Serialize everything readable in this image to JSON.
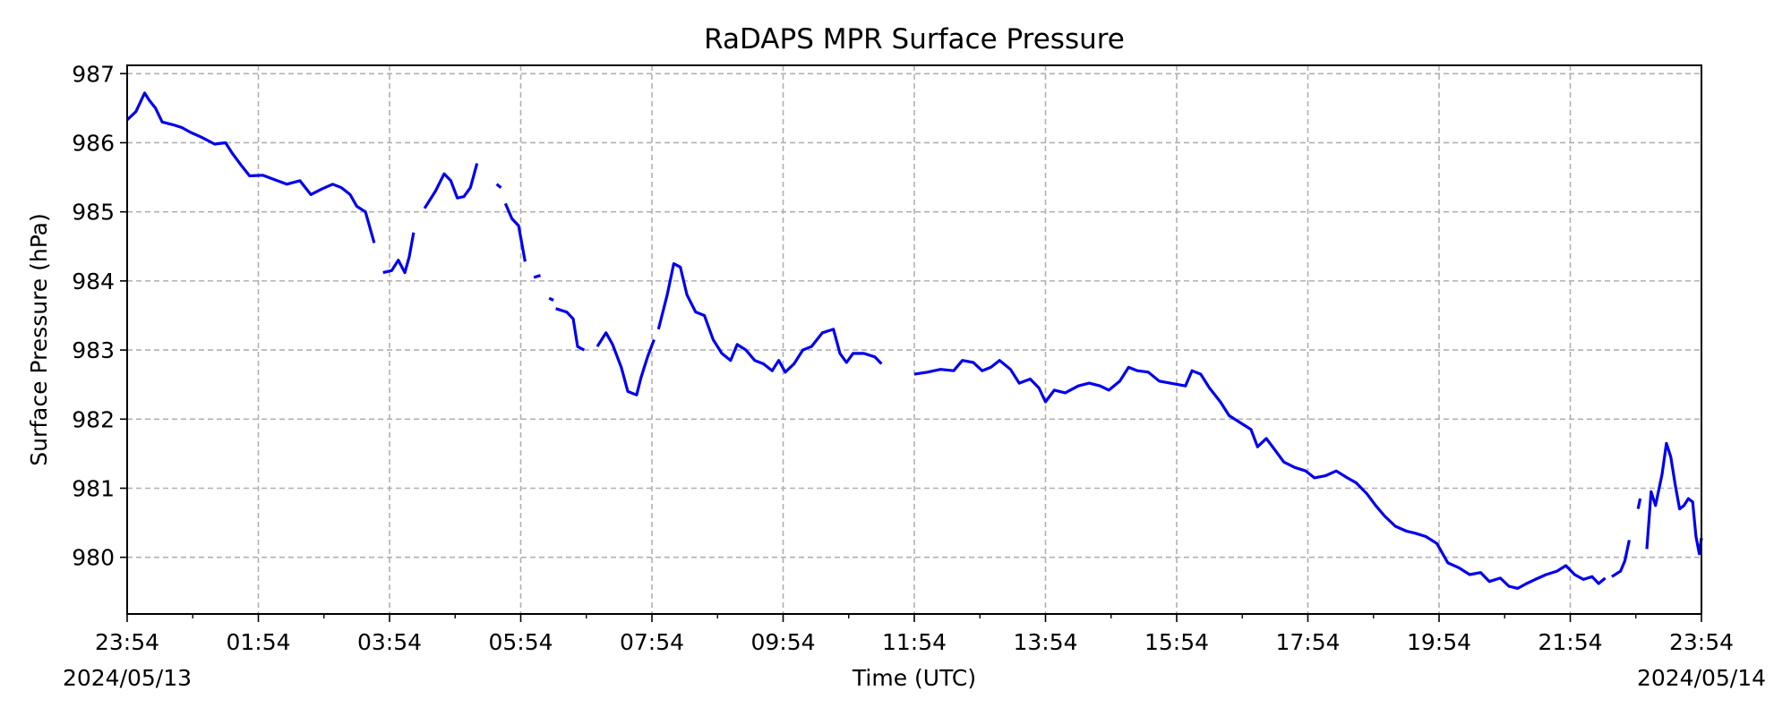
{
  "chart_data": {
    "type": "line",
    "title": "RaDAPS MPR Surface Pressure",
    "xlabel": "Time (UTC)",
    "ylabel": "Surface Pressure (hPa)",
    "x_start_date": "2024/05/13",
    "x_end_date": "2024/05/14",
    "x_tick_labels": [
      "23:54",
      "01:54",
      "03:54",
      "05:54",
      "07:54",
      "09:54",
      "11:54",
      "13:54",
      "15:54",
      "17:54",
      "19:54",
      "21:54",
      "23:54"
    ],
    "xlim": [
      "2024/05/13 23:54",
      "2024/05/14 23:54"
    ],
    "y_tick_labels": [
      "980",
      "981",
      "982",
      "983",
      "984",
      "985",
      "986",
      "987"
    ],
    "y_ticks": [
      980,
      981,
      982,
      983,
      984,
      985,
      986,
      987
    ],
    "ylim": [
      979.18,
      987.12
    ],
    "grid": true,
    "line_color": "#0000ee",
    "series": [
      {
        "segments": [
          [
            [
              "23:54",
              986.33
            ],
            [
              "00:02",
              986.45
            ],
            [
              "00:10",
              986.72
            ],
            [
              "00:14",
              986.62
            ],
            [
              "00:20",
              986.5
            ],
            [
              "00:26",
              986.3
            ],
            [
              "00:36",
              986.26
            ],
            [
              "00:44",
              986.22
            ],
            [
              "00:52",
              986.15
            ],
            [
              "01:02",
              986.08
            ],
            [
              "01:14",
              985.98
            ],
            [
              "01:24",
              986.0
            ],
            [
              "01:30",
              985.85
            ],
            [
              "01:38",
              985.68
            ],
            [
              "01:46",
              985.52
            ],
            [
              "01:58",
              985.53
            ],
            [
              "02:08",
              985.47
            ],
            [
              "02:20",
              985.4
            ],
            [
              "02:32",
              985.45
            ],
            [
              "02:42",
              985.25
            ],
            [
              "02:52",
              985.33
            ],
            [
              "03:02",
              985.4
            ],
            [
              "03:10",
              985.35
            ],
            [
              "03:18",
              985.25
            ],
            [
              "03:24",
              985.08
            ],
            [
              "03:32",
              985.0
            ],
            [
              "03:40",
              984.55
            ]
          ],
          [
            [
              "03:48",
              984.12
            ],
            [
              "03:56",
              984.15
            ],
            [
              "04:02",
              984.3
            ],
            [
              "04:08",
              984.12
            ],
            [
              "04:12",
              984.35
            ],
            [
              "04:16",
              984.7
            ]
          ],
          [
            [
              "04:26",
              985.05
            ],
            [
              "04:36",
              985.3
            ],
            [
              "04:44",
              985.55
            ],
            [
              "04:50",
              985.45
            ],
            [
              "04:56",
              985.2
            ],
            [
              "05:02",
              985.22
            ],
            [
              "05:08",
              985.35
            ],
            [
              "05:14",
              985.7
            ]
          ],
          [
            [
              "05:32",
              985.4
            ],
            [
              "05:36",
              985.35
            ]
          ],
          [
            [
              "05:40",
              985.12
            ],
            [
              "05:46",
              984.9
            ],
            [
              "05:52",
              984.8
            ],
            [
              "05:58",
              984.28
            ]
          ],
          [
            [
              "06:06",
              984.05
            ],
            [
              "06:12",
              984.08
            ]
          ],
          [
            [
              "06:20",
              983.75
            ],
            [
              "06:24",
              983.72
            ]
          ],
          [
            [
              "06:26",
              983.6
            ],
            [
              "06:36",
              983.55
            ],
            [
              "06:42",
              983.45
            ],
            [
              "06:46",
              983.05
            ],
            [
              "06:52",
              983.0
            ]
          ],
          [
            [
              "07:04",
              983.05
            ],
            [
              "07:12",
              983.25
            ],
            [
              "07:18",
              983.08
            ],
            [
              "07:26",
              982.75
            ],
            [
              "07:32",
              982.4
            ],
            [
              "07:40",
              982.35
            ],
            [
              "07:44",
              982.6
            ],
            [
              "07:50",
              982.9
            ],
            [
              "07:56",
              983.15
            ]
          ],
          [
            [
              "08:00",
              983.3
            ],
            [
              "08:04",
              983.55
            ],
            [
              "08:08",
              983.8
            ],
            [
              "08:14",
              984.25
            ],
            [
              "08:20",
              984.2
            ],
            [
              "08:26",
              983.8
            ],
            [
              "08:34",
              983.55
            ],
            [
              "08:42",
              983.5
            ],
            [
              "08:50",
              983.15
            ],
            [
              "08:58",
              982.95
            ],
            [
              "09:06",
              982.85
            ],
            [
              "09:12",
              983.08
            ],
            [
              "09:20",
              983.0
            ],
            [
              "09:28",
              982.85
            ],
            [
              "09:36",
              982.8
            ],
            [
              "09:44",
              982.7
            ],
            [
              "09:50",
              982.85
            ],
            [
              "09:56",
              982.68
            ],
            [
              "10:04",
              982.8
            ],
            [
              "10:12",
              983.0
            ],
            [
              "10:20",
              983.05
            ],
            [
              "10:30",
              983.25
            ],
            [
              "10:40",
              983.3
            ],
            [
              "10:46",
              982.95
            ],
            [
              "10:52",
              982.82
            ],
            [
              "10:58",
              982.95
            ],
            [
              "11:08",
              982.95
            ],
            [
              "11:18",
              982.9
            ],
            [
              "11:24",
              982.8
            ]
          ],
          [
            [
              "11:54",
              982.65
            ],
            [
              "12:06",
              982.68
            ],
            [
              "12:18",
              982.72
            ],
            [
              "12:30",
              982.7
            ],
            [
              "12:38",
              982.85
            ],
            [
              "12:48",
              982.82
            ],
            [
              "12:56",
              982.7
            ],
            [
              "13:04",
              982.75
            ],
            [
              "13:12",
              982.85
            ],
            [
              "13:22",
              982.72
            ],
            [
              "13:30",
              982.52
            ],
            [
              "13:40",
              982.58
            ],
            [
              "13:48",
              982.45
            ],
            [
              "13:54",
              982.25
            ],
            [
              "14:02",
              982.42
            ],
            [
              "14:12",
              982.38
            ],
            [
              "14:24",
              982.48
            ],
            [
              "14:34",
              982.52
            ],
            [
              "14:44",
              982.48
            ],
            [
              "14:52",
              982.42
            ],
            [
              "15:02",
              982.55
            ],
            [
              "15:10",
              982.75
            ],
            [
              "15:18",
              982.7
            ],
            [
              "15:28",
              982.68
            ],
            [
              "15:38",
              982.55
            ],
            [
              "15:48",
              982.52
            ],
            [
              "16:02",
              982.48
            ],
            [
              "16:08",
              982.7
            ],
            [
              "16:16",
              982.65
            ],
            [
              "16:24",
              982.45
            ],
            [
              "16:34",
              982.25
            ],
            [
              "16:42",
              982.05
            ],
            [
              "16:52",
              981.95
            ],
            [
              "17:02",
              981.85
            ],
            [
              "17:08",
              981.6
            ],
            [
              "17:16",
              981.72
            ],
            [
              "17:24",
              981.55
            ],
            [
              "17:32",
              981.38
            ],
            [
              "17:42",
              981.3
            ],
            [
              "17:52",
              981.25
            ],
            [
              "18:00",
              981.15
            ],
            [
              "18:10",
              981.18
            ],
            [
              "18:20",
              981.25
            ],
            [
              "18:30",
              981.15
            ],
            [
              "18:38",
              981.08
            ],
            [
              "18:48",
              980.92
            ],
            [
              "18:56",
              980.75
            ],
            [
              "19:04",
              980.6
            ],
            [
              "19:14",
              980.45
            ],
            [
              "19:24",
              980.38
            ],
            [
              "19:32",
              980.35
            ],
            [
              "19:42",
              980.3
            ],
            [
              "19:52",
              980.2
            ],
            [
              "20:02",
              979.92
            ],
            [
              "20:12",
              979.85
            ],
            [
              "20:22",
              979.75
            ],
            [
              "20:32",
              979.78
            ],
            [
              "20:40",
              979.65
            ],
            [
              "20:50",
              979.7
            ],
            [
              "20:58",
              979.58
            ],
            [
              "21:06",
              979.55
            ],
            [
              "21:14",
              979.62
            ],
            [
              "21:22",
              979.68
            ],
            [
              "21:32",
              979.75
            ],
            [
              "21:42",
              979.8
            ],
            [
              "21:50",
              979.88
            ],
            [
              "21:58",
              979.75
            ],
            [
              "22:06",
              979.68
            ],
            [
              "22:14",
              979.72
            ],
            [
              "22:20",
              979.62
            ],
            [
              "22:26",
              979.7
            ]
          ],
          [
            [
              "22:32",
              979.72
            ],
            [
              "22:40",
              979.8
            ],
            [
              "22:44",
              979.95
            ],
            [
              "22:48",
              980.25
            ]
          ],
          [
            [
              "22:56",
              980.7
            ],
            [
              "22:58",
              980.85
            ]
          ],
          [
            [
              "23:04",
              980.12
            ],
            [
              "23:08",
              980.95
            ],
            [
              "23:12",
              980.75
            ],
            [
              "23:18",
              981.2
            ],
            [
              "23:22",
              981.65
            ],
            [
              "23:26",
              981.45
            ],
            [
              "23:30",
              981.05
            ],
            [
              "23:34",
              980.7
            ],
            [
              "23:38",
              980.75
            ],
            [
              "23:42",
              980.85
            ],
            [
              "23:46",
              980.8
            ],
            [
              "23:49",
              980.3
            ],
            [
              "23:52",
              980.05
            ],
            [
              "23:54",
              980.28
            ]
          ]
        ]
      }
    ]
  }
}
